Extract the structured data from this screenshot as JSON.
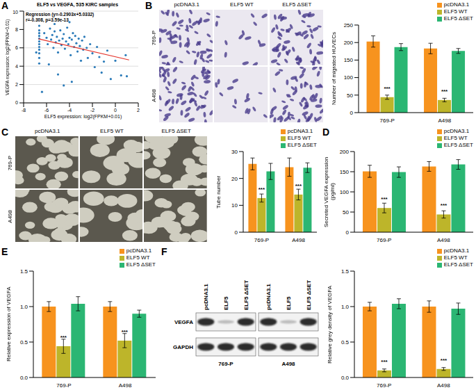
{
  "chart_data": [
    {
      "panel": "A",
      "type": "scatter",
      "title": "ELF5 vs VEGFA, 535 KIRC samples",
      "annotations": [
        "Regression (y=-0.2903x+5.0332)",
        "r=-0.308, p=3.59e-13"
      ],
      "xlabel": "ELF5 expression: log2(FPKM+0.01)",
      "ylabel": "VEGFA expression: log2(FPKM+0.01)",
      "xlim": [
        -8,
        2
      ],
      "xticks": [
        -8,
        -6,
        -4,
        -2,
        0,
        2
      ],
      "ylim": [
        0,
        10
      ],
      "yticks": [
        0,
        2,
        4,
        6,
        8,
        10
      ],
      "grid": true,
      "series": [
        {
          "type": "scatter",
          "color": "#2b7bb9",
          "x": [
            -6.64,
            -6.64,
            -6.64,
            -6.64,
            -6.64,
            -6.64,
            -6.64,
            -6.64,
            -6.64,
            -6.64,
            -6.64,
            -6.64,
            -6.2,
            -6.0,
            -5.9,
            -5.7,
            -5.6,
            -5.5,
            -5.4,
            -5.3,
            -5.2,
            -5.1,
            -5.0,
            -4.9,
            -4.8,
            -4.7,
            -4.6,
            -4.5,
            -4.4,
            -4.3,
            -4.2,
            -4.1,
            -4.0,
            -3.9,
            -3.8,
            -3.7,
            -3.6,
            -3.5,
            -3.4,
            -3.3,
            -3.2,
            -3.1,
            -3.0,
            -2.9,
            -2.8,
            -2.7,
            -2.5,
            -2.4,
            -2.2,
            -2.0,
            -1.8,
            -1.6,
            -1.4,
            -1.2,
            -1.0,
            -0.7,
            -0.4,
            0,
            0.5,
            0.9,
            1.0,
            -5.8,
            -5.0,
            -4.5,
            -3.8,
            -6.4,
            -5.3,
            -4.0,
            -6.9
          ],
          "values": [
            8.4,
            7.9,
            7.6,
            7.3,
            7.0,
            6.7,
            6.4,
            6.1,
            5.8,
            5.4,
            4.9,
            4.3,
            7.6,
            7.1,
            6.4,
            8.1,
            6.9,
            7.4,
            6.0,
            7.8,
            6.6,
            7.2,
            5.5,
            6.8,
            7.9,
            6.3,
            7.0,
            7.5,
            5.9,
            6.7,
            8.2,
            6.4,
            7.1,
            5.2,
            6.9,
            7.6,
            6.1,
            7.3,
            6.5,
            5.6,
            7.0,
            6.2,
            4.6,
            6.8,
            5.8,
            7.2,
            6.0,
            4.9,
            6.4,
            5.4,
            3.9,
            6.1,
            5.0,
            3.3,
            4.5,
            5.7,
            2.6,
            4.6,
            3.0,
            5.2,
            2.9,
            4.2,
            3.1,
            1.9,
            2.3,
            1.2,
            8.6,
            8.8,
            5.5
          ]
        },
        {
          "type": "line",
          "color": "#e5332a",
          "x": [
            -6.7,
            1.2
          ],
          "values": [
            6.98,
            4.68
          ]
        }
      ]
    },
    {
      "type": "bar",
      "ylabel": "Number of migrated HUVECs",
      "categories": [
        "769-P",
        "A498"
      ],
      "ylim": [
        0,
        250
      ],
      "yticks": [
        0,
        50,
        100,
        150,
        200,
        250
      ],
      "grid": false,
      "legend": "upper right",
      "series": [
        {
          "name": "pcDNA3.1",
          "color": "#f7931e",
          "values": [
            203,
            183
          ],
          "errors": [
            16,
            15
          ]
        },
        {
          "name": "ELF5 WT",
          "color": "#bdb52a",
          "values": [
            44,
            36
          ],
          "errors": [
            6,
            5
          ],
          "annotations": [
            "***",
            "***"
          ]
        },
        {
          "name": "ELF5 ΔSET",
          "color": "#2bb673",
          "values": [
            187,
            176
          ],
          "errors": [
            10,
            7
          ]
        }
      ]
    },
    {
      "type": "bar",
      "ylabel": "Tube number",
      "categories": [
        "769-P",
        "A498"
      ],
      "ylim": [
        0,
        30
      ],
      "yticks": [
        0,
        10,
        20,
        30
      ],
      "grid": false,
      "legend": "upper right",
      "series": [
        {
          "name": "pcDNA3.1",
          "color": "#f7931e",
          "values": [
            25.4,
            24.2
          ],
          "errors": [
            2.2,
            3.4
          ]
        },
        {
          "name": "ELF5 WT",
          "color": "#bdb52a",
          "values": [
            12.7,
            14.0
          ],
          "errors": [
            1.5,
            2.0
          ],
          "annotations": [
            "***",
            "***"
          ]
        },
        {
          "name": "ELF5 ΔSET",
          "color": "#2bb673",
          "values": [
            22.6,
            24.0
          ],
          "errors": [
            3.0,
            1.8
          ]
        }
      ]
    },
    {
      "panel": "D",
      "type": "bar",
      "ylabel": "Secreted VEGFA expression (pg/ml)",
      "categories": [
        "769-P",
        "A498"
      ],
      "ylim": [
        0,
        200
      ],
      "yticks": [
        0,
        50,
        100,
        150,
        200
      ],
      "grid": false,
      "legend": "upper right",
      "series": [
        {
          "name": "pcDNA3.1",
          "color": "#f7931e",
          "values": [
            151,
            163
          ],
          "errors": [
            15,
            12
          ]
        },
        {
          "name": "ELF5 WT",
          "color": "#bdb52a",
          "values": [
            60,
            44
          ],
          "errors": [
            12,
            9
          ],
          "annotations": [
            "***",
            "***"
          ]
        },
        {
          "name": "ELF5 ΔSET",
          "color": "#2bb673",
          "values": [
            149,
            168
          ],
          "errors": [
            13,
            12
          ]
        }
      ]
    },
    {
      "panel": "E",
      "type": "bar",
      "ylabel": "Relative expression of VEGFA",
      "categories": [
        "769-P",
        "A498"
      ],
      "ylim": [
        0,
        1.5
      ],
      "yticks": [
        {
          "value": 0,
          "label": "0.0"
        },
        0.5,
        {
          "value": 1,
          "label": "1.0"
        },
        1.5
      ],
      "grid": false,
      "legend": "upper right",
      "series": [
        {
          "name": "pcDNA3.1",
          "color": "#f7931e",
          "values": [
            1.0,
            1.0
          ],
          "errors": [
            0.07,
            0.07
          ]
        },
        {
          "name": "ELF5 WT",
          "color": "#bdb52a",
          "values": [
            0.44,
            0.52
          ],
          "errors": [
            0.1,
            0.1
          ],
          "annotations": [
            "***",
            "***"
          ]
        },
        {
          "name": "ELF5 ΔSET",
          "color": "#2bb673",
          "values": [
            1.04,
            0.9
          ],
          "errors": [
            0.1,
            0.05
          ]
        }
      ]
    },
    {
      "type": "bar",
      "ylabel": "Relative grey density of VEGFA",
      "categories": [
        "769-P",
        "A498"
      ],
      "ylim": [
        0,
        1.5
      ],
      "yticks": [
        {
          "value": 0,
          "label": "0.0"
        },
        0.5,
        {
          "value": 1,
          "label": "1.0"
        },
        1.5
      ],
      "grid": false,
      "legend": "upper right",
      "series": [
        {
          "name": "pcDNA3.1",
          "color": "#f7931e",
          "values": [
            1.0,
            1.0
          ],
          "errors": [
            0.06,
            0.08
          ]
        },
        {
          "name": "ELF5 WT",
          "color": "#bdb52a",
          "values": [
            0.1,
            0.12
          ],
          "errors": [
            0.02,
            0.02
          ],
          "annotations": [
            "***",
            "***"
          ]
        },
        {
          "name": "ELF5 ΔSET",
          "color": "#2bb673",
          "values": [
            1.04,
            0.97
          ],
          "errors": [
            0.07,
            0.08
          ]
        }
      ]
    }
  ],
  "images": [
    {
      "panel": "B",
      "columns": [
        "pcDNA3.1",
        "ELF5 WT",
        "ELF5 ΔSET"
      ],
      "rows": [
        "769-P",
        "A498"
      ]
    },
    {
      "panel": "C",
      "columns": [
        "pcDNA3.1",
        "ELF5 WT",
        "ELF5 ΔSET"
      ],
      "rows": [
        "769-P",
        "A498"
      ]
    }
  ],
  "blot": {
    "panel": "F",
    "lanes": [
      "pcDNA3.1",
      "ELF5",
      "ELF5 ΔSET"
    ],
    "groups": [
      "769-P",
      "A498"
    ],
    "bands": [
      "VEGFA",
      "GAPDH"
    ]
  }
}
